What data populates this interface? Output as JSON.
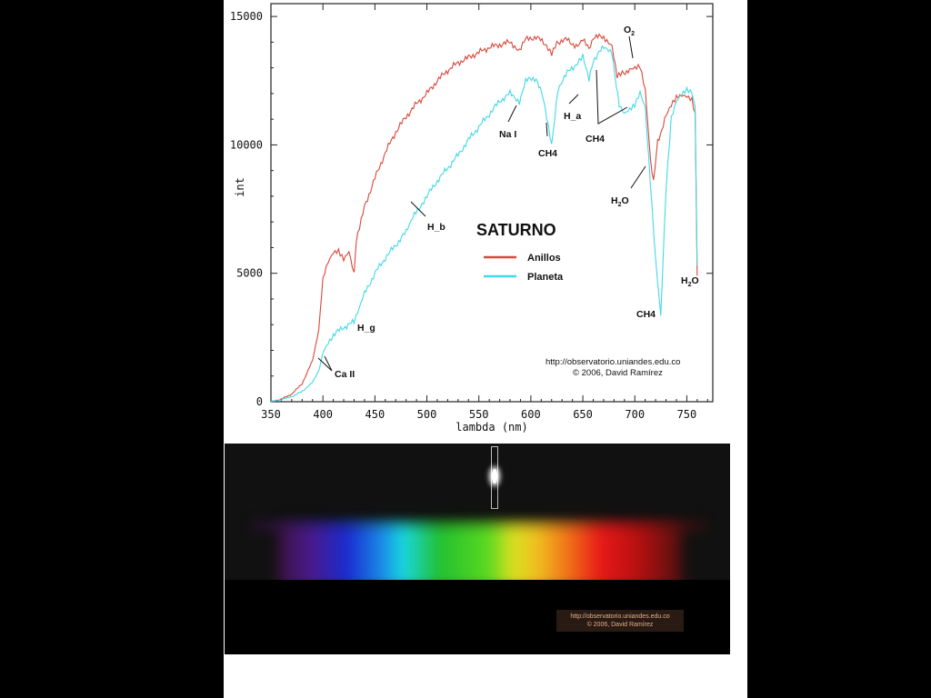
{
  "chart_data": {
    "type": "line",
    "title": "SATURNO",
    "xlabel": "lambda (nm)",
    "ylabel": "int",
    "xlim": [
      350,
      775
    ],
    "ylim": [
      0,
      15500
    ],
    "xticks": [
      350,
      400,
      450,
      500,
      550,
      600,
      650,
      700,
      750
    ],
    "yticks": [
      0,
      5000,
      10000,
      15000
    ],
    "legend_position": "center-right",
    "series": [
      {
        "name": "Anillos",
        "color": "#d9483b",
        "points": [
          [
            350,
            0
          ],
          [
            360,
            100
          ],
          [
            370,
            300
          ],
          [
            380,
            700
          ],
          [
            390,
            1600
          ],
          [
            396,
            2800
          ],
          [
            400,
            4800
          ],
          [
            405,
            5400
          ],
          [
            410,
            5800
          ],
          [
            415,
            5900
          ],
          [
            420,
            5600
          ],
          [
            425,
            5900
          ],
          [
            430,
            5000
          ],
          [
            432,
            6200
          ],
          [
            440,
            7600
          ],
          [
            450,
            8700
          ],
          [
            460,
            9700
          ],
          [
            470,
            10500
          ],
          [
            480,
            11100
          ],
          [
            490,
            11600
          ],
          [
            500,
            12000
          ],
          [
            510,
            12500
          ],
          [
            520,
            12900
          ],
          [
            530,
            13200
          ],
          [
            540,
            13400
          ],
          [
            550,
            13600
          ],
          [
            560,
            13800
          ],
          [
            570,
            13900
          ],
          [
            580,
            14000
          ],
          [
            589,
            13700
          ],
          [
            595,
            14100
          ],
          [
            605,
            14200
          ],
          [
            615,
            13900
          ],
          [
            620,
            13600
          ],
          [
            625,
            14000
          ],
          [
            635,
            14100
          ],
          [
            645,
            13800
          ],
          [
            650,
            14100
          ],
          [
            656,
            13700
          ],
          [
            660,
            14200
          ],
          [
            670,
            14200
          ],
          [
            678,
            13900
          ],
          [
            683,
            12700
          ],
          [
            688,
            12800
          ],
          [
            695,
            12900
          ],
          [
            700,
            13000
          ],
          [
            705,
            13100
          ],
          [
            710,
            12200
          ],
          [
            715,
            9500
          ],
          [
            718,
            8600
          ],
          [
            722,
            10100
          ],
          [
            726,
            10600
          ],
          [
            730,
            11100
          ],
          [
            735,
            11500
          ],
          [
            740,
            11800
          ],
          [
            745,
            11900
          ],
          [
            750,
            11900
          ],
          [
            755,
            11800
          ],
          [
            758,
            11200
          ],
          [
            760,
            4900
          ]
        ]
      },
      {
        "name": "Planeta",
        "color": "#43d9e6",
        "points": [
          [
            350,
            0
          ],
          [
            360,
            80
          ],
          [
            370,
            200
          ],
          [
            380,
            400
          ],
          [
            390,
            750
          ],
          [
            396,
            1200
          ],
          [
            400,
            1900
          ],
          [
            405,
            2300
          ],
          [
            410,
            2600
          ],
          [
            420,
            2900
          ],
          [
            430,
            3100
          ],
          [
            435,
            3600
          ],
          [
            440,
            4200
          ],
          [
            450,
            5000
          ],
          [
            460,
            5600
          ],
          [
            470,
            6100
          ],
          [
            480,
            6600
          ],
          [
            483,
            6900
          ],
          [
            488,
            7300
          ],
          [
            500,
            8000
          ],
          [
            510,
            8600
          ],
          [
            520,
            9100
          ],
          [
            530,
            9600
          ],
          [
            540,
            10200
          ],
          [
            550,
            10700
          ],
          [
            560,
            11200
          ],
          [
            570,
            11700
          ],
          [
            580,
            12000
          ],
          [
            589,
            11700
          ],
          [
            595,
            12500
          ],
          [
            605,
            12600
          ],
          [
            612,
            11800
          ],
          [
            620,
            10000
          ],
          [
            626,
            12200
          ],
          [
            635,
            12800
          ],
          [
            645,
            13200
          ],
          [
            650,
            13500
          ],
          [
            656,
            12500
          ],
          [
            660,
            13300
          ],
          [
            670,
            13800
          ],
          [
            678,
            13600
          ],
          [
            685,
            11500
          ],
          [
            690,
            11200
          ],
          [
            695,
            11400
          ],
          [
            700,
            11600
          ],
          [
            705,
            12100
          ],
          [
            710,
            11500
          ],
          [
            715,
            8500
          ],
          [
            720,
            5500
          ],
          [
            725,
            3300
          ],
          [
            730,
            8200
          ],
          [
            735,
            11000
          ],
          [
            740,
            11700
          ],
          [
            745,
            12000
          ],
          [
            750,
            12200
          ],
          [
            755,
            12100
          ],
          [
            758,
            11500
          ],
          [
            760,
            5300
          ]
        ]
      }
    ],
    "annotations": [
      {
        "text": "Ca II"
      },
      {
        "text": "H_g"
      },
      {
        "text": "H_b"
      },
      {
        "text": "Na I"
      },
      {
        "text": "CH4"
      },
      {
        "text": "H_a"
      },
      {
        "text": "CH4"
      },
      {
        "text": "O"
      },
      {
        "text": "H"
      },
      {
        "text": "O"
      },
      {
        "text": "CH4"
      },
      {
        "text": "H"
      },
      {
        "text": "O"
      }
    ],
    "subscript_2": "2",
    "credit_line1": "http://observatorio.uniandes.edu.co",
    "credit_line2": "© 2006, David Ramírez"
  },
  "spectrum": {
    "credit_line1": "http://observatorio.uniandes.edu.co",
    "credit_line2": "© 2006, David Ramírez"
  }
}
